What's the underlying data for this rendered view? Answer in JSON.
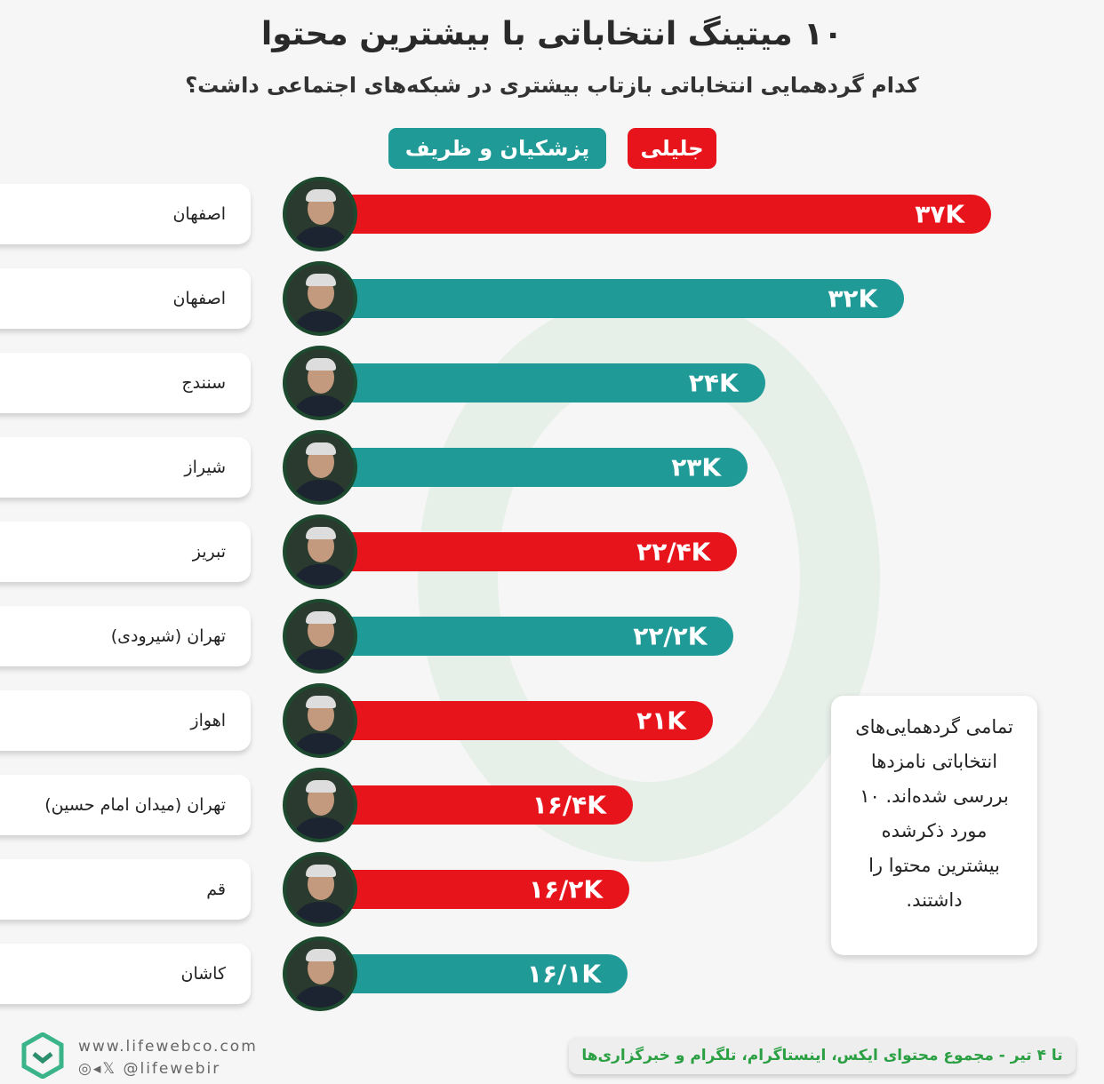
{
  "title": "۱۰ میتینگ انتخاباتی با بیشترین محتوا",
  "subtitle": "کدام گردهمایی انتخاباتی بازتاب بیشتری در شبکه‌های اجتماعی داشت؟",
  "colors": {
    "jalili": "#e8141c",
    "pezeshkian_zarif": "#1f9a96"
  },
  "chart_data": {
    "type": "bar",
    "orientation": "horizontal",
    "title": "۱۰ میتینگ انتخاباتی با بیشترین محتوا",
    "legend": [
      {
        "name": "جلیلی",
        "color": "#e8141c"
      },
      {
        "name": "پزشکیان و ظریف",
        "color": "#1f9a96"
      }
    ],
    "legend_placement": "top",
    "categories": [
      "اصفهان",
      "اصفهان",
      "سنندج",
      "شیراز",
      "تبریز",
      "تهران (شیرودی)",
      "اهواز",
      "تهران (میدان امام حسین)",
      "قم",
      "کاشان"
    ],
    "values": [
      37,
      32,
      24,
      23,
      22.4,
      22.2,
      21,
      16.4,
      16.2,
      16.1
    ],
    "unit": "K",
    "labels": [
      "۳۷K",
      "۳۲K",
      "۲۴K",
      "۲۳K",
      "۲۲/۴K",
      "۲۲/۲K",
      "۲۱K",
      "۱۶/۴K",
      "۱۶/۲K",
      "۱۶/۱K"
    ],
    "series_of_bar": [
      "جلیلی",
      "پزشکیان و ظریف",
      "پزشکیان و ظریف",
      "پزشکیان و ظریف",
      "جلیلی",
      "پزشکیان و ظریف",
      "جلیلی",
      "جلیلی",
      "جلیلی",
      "پزشکیان و ظریف"
    ],
    "grid": false
  },
  "note": "تمامی گردهمایی‌های انتخاباتی نامزدها بررسی شده‌اند. ۱۰ مورد ذکرشده بیشترین محتوا را داشتند.",
  "footer": {
    "source": "تا ۴ تیر - مجموع محتوای ایکس، اینستاگرام، تلگرام و خبرگزاری‌ها",
    "website": "www.lifewebco.com",
    "social": "@lifewebir"
  }
}
